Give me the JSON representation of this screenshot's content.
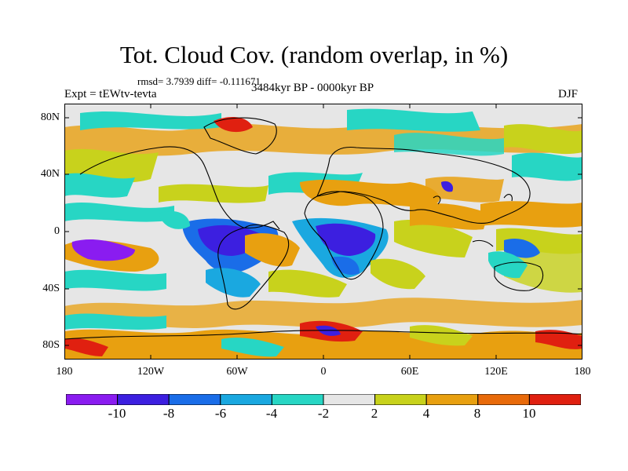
{
  "map": {
    "title": "Tot. Cloud Cov. (random overlap, in %)",
    "stats": "rmsd= 3.7939 diff= -0.111671",
    "experiment": "Expt = tEWtv-tevta",
    "period": "3484kyr BP - 0000kyr BP",
    "season": "DJF",
    "lat_labels": [
      "80N",
      "40N",
      "0",
      "40S",
      "80S"
    ],
    "lon_labels": [
      "180",
      "120W",
      "60W",
      "0",
      "60E",
      "120E",
      "180"
    ],
    "variable": "Total cloud cover difference",
    "units": "%"
  },
  "colorbar": {
    "labels": [
      "-10",
      "-8",
      "-6",
      "-4",
      "-2",
      "2",
      "4",
      "8",
      "10"
    ],
    "colors": [
      "#8a1cf0",
      "#3c1fe0",
      "#1a6de8",
      "#1aa8e0",
      "#27d6c4",
      "#e6e6e6",
      "#c8d21c",
      "#e8a010",
      "#e86a0a",
      "#e02010"
    ]
  }
}
